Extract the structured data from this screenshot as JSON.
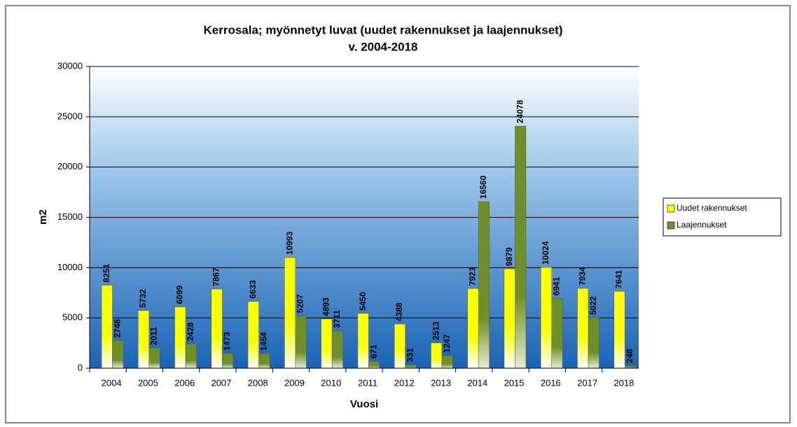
{
  "chart_data": {
    "type": "bar",
    "title": "Kerrosala; myönnetyt luvat (uudet rakennukset ja laajennukset)",
    "subtitle": "v. 2004-2018",
    "x_label": "Vuosi",
    "y_label": "m2",
    "categories": [
      "2004",
      "2005",
      "2006",
      "2007",
      "2008",
      "2009",
      "2010",
      "2011",
      "2012",
      "2013",
      "2014",
      "2015",
      "2016",
      "2017",
      "2018"
    ],
    "series": [
      {
        "name": "Uudet rakennukset",
        "color": "#ffff00",
        "values": [
          8251,
          5732,
          6099,
          7867,
          6633,
          10993,
          4893,
          5450,
          4388,
          2513,
          7923,
          9879,
          10024,
          7934,
          7641
        ]
      },
      {
        "name": "Laajennukset",
        "color": "#6f8f2a",
        "values": [
          2748,
          2011,
          2428,
          1473,
          1454,
          5207,
          3711,
          671,
          331,
          1247,
          16560,
          24078,
          6941,
          5022,
          248
        ]
      }
    ],
    "ylim": [
      0,
      30000
    ],
    "yticks": [
      0,
      5000,
      10000,
      15000,
      20000,
      25000,
      30000
    ],
    "grid": true,
    "legend": "right"
  }
}
